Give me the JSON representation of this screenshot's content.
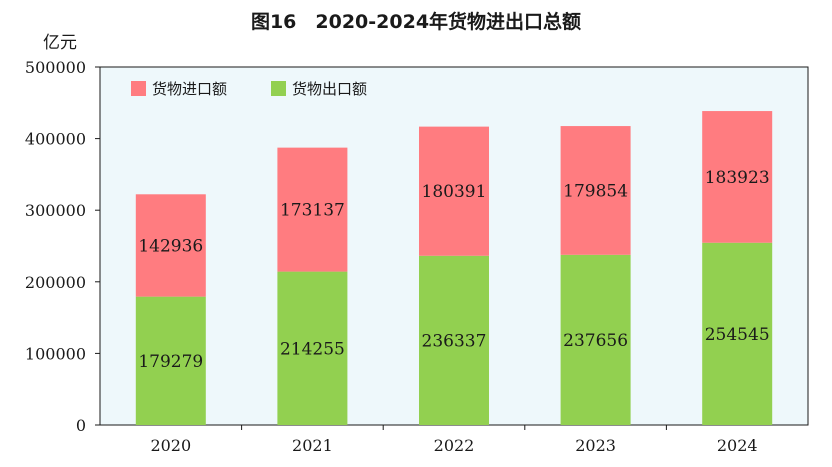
{
  "chart_data": {
    "type": "bar",
    "stacked": true,
    "title": "图16　2020-2024年货物进出口总额",
    "ylabel": "亿元",
    "xlabel": "",
    "categories": [
      "2020",
      "2021",
      "2022",
      "2023",
      "2024"
    ],
    "series": [
      {
        "name": "货物出口额",
        "color": "#92d050",
        "values": [
          179279,
          214255,
          236337,
          237656,
          254545
        ]
      },
      {
        "name": "货物进口额",
        "color": "#ff7c80",
        "values": [
          142936,
          173137,
          180391,
          179854,
          183923
        ]
      }
    ],
    "ylim": [
      0,
      500000
    ],
    "yticks": [
      0,
      100000,
      200000,
      300000,
      400000,
      500000
    ],
    "plot_background": "#eef8fb",
    "grid": false,
    "legend_position": "top-left"
  }
}
